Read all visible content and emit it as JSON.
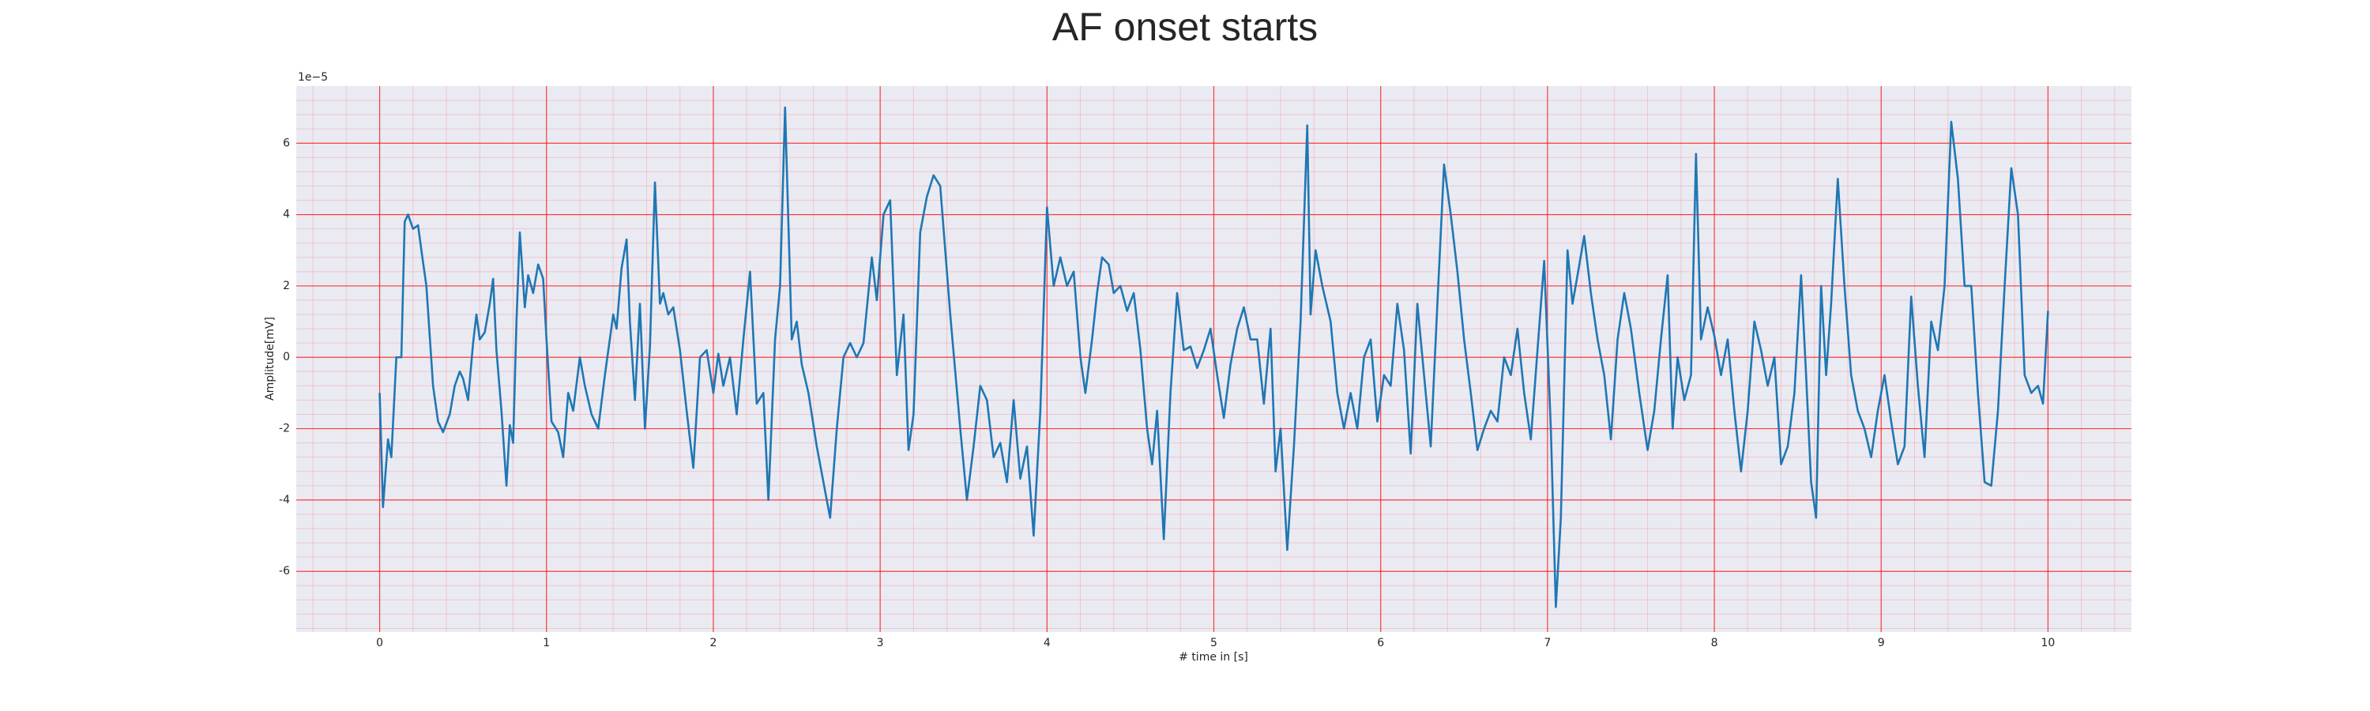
{
  "chart_data": {
    "type": "line",
    "title": "AF onset starts",
    "x_label": "# time in [s]",
    "y_label": "Amplitude[mV]",
    "y_offset_label": "1e−5",
    "xlim": [
      -0.5,
      10.5
    ],
    "ylim": [
      -7.7,
      7.6
    ],
    "xticks": [
      0,
      1,
      2,
      3,
      4,
      5,
      6,
      7,
      8,
      9,
      10
    ],
    "yticks": [
      -6,
      -4,
      -2,
      0,
      2,
      4,
      6
    ],
    "grid": true,
    "minor_grid": true,
    "grid_color": "#ff0000",
    "background": "#eaeaf2",
    "series": [
      {
        "color": "#1f77b4",
        "x": [
          0,
          0.02,
          0.05,
          0.07,
          0.1,
          0.13,
          0.15,
          0.17,
          0.2,
          0.23,
          0.25,
          0.28,
          0.32,
          0.35,
          0.38,
          0.42,
          0.45,
          0.48,
          0.5,
          0.53,
          0.56,
          0.58,
          0.6,
          0.63,
          0.66,
          0.68,
          0.7,
          0.73,
          0.76,
          0.78,
          0.8,
          0.82,
          0.84,
          0.87,
          0.89,
          0.92,
          0.95,
          0.98,
          1.0,
          1.03,
          1.07,
          1.1,
          1.13,
          1.16,
          1.2,
          1.23,
          1.27,
          1.31,
          1.35,
          1.4,
          1.42,
          1.45,
          1.48,
          1.5,
          1.53,
          1.56,
          1.59,
          1.62,
          1.65,
          1.68,
          1.7,
          1.73,
          1.76,
          1.8,
          1.84,
          1.88,
          1.92,
          1.96,
          2.0,
          2.03,
          2.06,
          2.1,
          2.14,
          2.18,
          2.22,
          2.26,
          2.3,
          2.33,
          2.37,
          2.4,
          2.43,
          2.47,
          2.5,
          2.53,
          2.57,
          2.62,
          2.66,
          2.7,
          2.74,
          2.78,
          2.82,
          2.86,
          2.9,
          2.95,
          2.98,
          3.02,
          3.06,
          3.1,
          3.14,
          3.17,
          3.2,
          3.24,
          3.28,
          3.32,
          3.36,
          3.42,
          3.48,
          3.52,
          3.56,
          3.6,
          3.64,
          3.68,
          3.72,
          3.76,
          3.8,
          3.84,
          3.88,
          3.92,
          3.96,
          4.0,
          4.04,
          4.08,
          4.12,
          4.16,
          4.2,
          4.23,
          4.27,
          4.3,
          4.33,
          4.37,
          4.4,
          4.44,
          4.48,
          4.52,
          4.56,
          4.6,
          4.63,
          4.66,
          4.7,
          4.74,
          4.78,
          4.82,
          4.86,
          4.9,
          4.94,
          4.98,
          5.02,
          5.06,
          5.1,
          5.14,
          5.18,
          5.22,
          5.26,
          5.3,
          5.34,
          5.37,
          5.4,
          5.44,
          5.48,
          5.52,
          5.56,
          5.58,
          5.61,
          5.65,
          5.7,
          5.74,
          5.78,
          5.82,
          5.86,
          5.9,
          5.94,
          5.98,
          6.02,
          6.06,
          6.1,
          6.14,
          6.18,
          6.22,
          6.25,
          6.3,
          6.34,
          6.38,
          6.42,
          6.46,
          6.5,
          6.54,
          6.58,
          6.62,
          6.66,
          6.7,
          6.74,
          6.78,
          6.82,
          6.86,
          6.9,
          6.94,
          6.98,
          7.02,
          7.05,
          7.08,
          7.12,
          7.15,
          7.18,
          7.22,
          7.26,
          7.3,
          7.34,
          7.38,
          7.42,
          7.46,
          7.5,
          7.55,
          7.6,
          7.64,
          7.68,
          7.72,
          7.75,
          7.78,
          7.82,
          7.86,
          7.89,
          7.92,
          7.96,
          8.0,
          8.04,
          8.08,
          8.12,
          8.16,
          8.2,
          8.24,
          8.28,
          8.32,
          8.36,
          8.4,
          8.44,
          8.48,
          8.52,
          8.55,
          8.58,
          8.61,
          8.64,
          8.67,
          8.7,
          8.74,
          8.78,
          8.82,
          8.86,
          8.9,
          8.94,
          8.98,
          9.02,
          9.06,
          9.1,
          9.14,
          9.18,
          9.22,
          9.26,
          9.3,
          9.34,
          9.38,
          9.42,
          9.46,
          9.5,
          9.54,
          9.58,
          9.62,
          9.66,
          9.7,
          9.74,
          9.78,
          9.82,
          9.86,
          9.9,
          9.94,
          9.97,
          10.0
        ],
        "values": [
          -1.0,
          -4.2,
          -2.3,
          -2.8,
          0,
          0,
          3.8,
          4.0,
          3.6,
          3.7,
          3.0,
          2.0,
          -0.8,
          -1.8,
          -2.1,
          -1.6,
          -0.8,
          -0.4,
          -0.6,
          -1.2,
          0.4,
          1.2,
          0.5,
          0.7,
          1.5,
          2.2,
          0.2,
          -1.5,
          -3.6,
          -1.9,
          -2.4,
          1.0,
          3.5,
          1.4,
          2.3,
          1.8,
          2.6,
          2.2,
          0.5,
          -1.8,
          -2.1,
          -2.8,
          -1.0,
          -1.5,
          0.0,
          -0.8,
          -1.6,
          -2.0,
          -0.5,
          1.2,
          0.8,
          2.5,
          3.3,
          1.0,
          -1.2,
          1.5,
          -2.0,
          0.3,
          4.9,
          1.5,
          1.8,
          1.2,
          1.4,
          0.2,
          -1.5,
          -3.1,
          0.0,
          0.2,
          -1.0,
          0.1,
          -0.8,
          0.0,
          -1.6,
          0.5,
          2.4,
          -1.3,
          -1.0,
          -4.0,
          0.5,
          2.0,
          7.0,
          0.5,
          1.0,
          -0.2,
          -1.0,
          -2.5,
          -3.5,
          -4.5,
          -2.0,
          0.0,
          0.4,
          0.0,
          0.4,
          2.8,
          1.6,
          4.0,
          4.4,
          -0.5,
          1.2,
          -2.6,
          -1.6,
          3.5,
          4.5,
          5.1,
          4.8,
          1.2,
          -2.0,
          -4.0,
          -2.5,
          -0.8,
          -1.2,
          -2.8,
          -2.4,
          -3.5,
          -1.2,
          -3.4,
          -2.5,
          -5.0,
          -1.5,
          4.2,
          2.0,
          2.8,
          2.0,
          2.4,
          0.0,
          -1.0,
          0.5,
          1.8,
          2.8,
          2.6,
          1.8,
          2.0,
          1.3,
          1.8,
          0.2,
          -2.0,
          -3.0,
          -1.5,
          -5.1,
          -1.0,
          1.8,
          0.2,
          0.3,
          -0.3,
          0.2,
          0.8,
          -0.5,
          -1.7,
          -0.2,
          0.8,
          1.4,
          0.5,
          0.5,
          -1.3,
          0.8,
          -3.2,
          -2.0,
          -5.4,
          -2.5,
          1.0,
          6.5,
          1.2,
          3.0,
          2.0,
          1.0,
          -1.0,
          -2.0,
          -1.0,
          -2.0,
          0.0,
          0.5,
          -1.8,
          -0.5,
          -0.8,
          1.5,
          0.2,
          -2.7,
          1.5,
          0.0,
          -2.5,
          1.5,
          5.4,
          4.0,
          2.4,
          0.5,
          -1.0,
          -2.6,
          -2.0,
          -1.5,
          -1.8,
          0.0,
          -0.5,
          0.8,
          -1.0,
          -2.3,
          0.2,
          2.7,
          -2.0,
          -7.0,
          -4.5,
          3.0,
          1.5,
          2.3,
          3.4,
          1.8,
          0.5,
          -0.5,
          -2.3,
          0.5,
          1.8,
          0.8,
          -1.0,
          -2.6,
          -1.5,
          0.5,
          2.3,
          -2.0,
          0.0,
          -1.2,
          -0.5,
          5.7,
          0.5,
          1.4,
          0.6,
          -0.5,
          0.5,
          -1.5,
          -3.2,
          -1.5,
          1.0,
          0.2,
          -0.8,
          0.0,
          -3.0,
          -2.5,
          -1.0,
          2.3,
          -0.5,
          -3.5,
          -4.5,
          2.0,
          -0.5,
          1.5,
          5.0,
          2.0,
          -0.5,
          -1.5,
          -2.0,
          -2.8,
          -1.5,
          -0.5,
          -1.8,
          -3.0,
          -2.5,
          1.7,
          -0.8,
          -2.8,
          1.0,
          0.2,
          2.0,
          6.6,
          5.0,
          2.0,
          2.0,
          -1.0,
          -3.5,
          -3.6,
          -1.5,
          2.0,
          5.3,
          4.0,
          -0.5,
          -1.0,
          -0.8,
          -1.3,
          1.3
        ]
      }
    ]
  }
}
